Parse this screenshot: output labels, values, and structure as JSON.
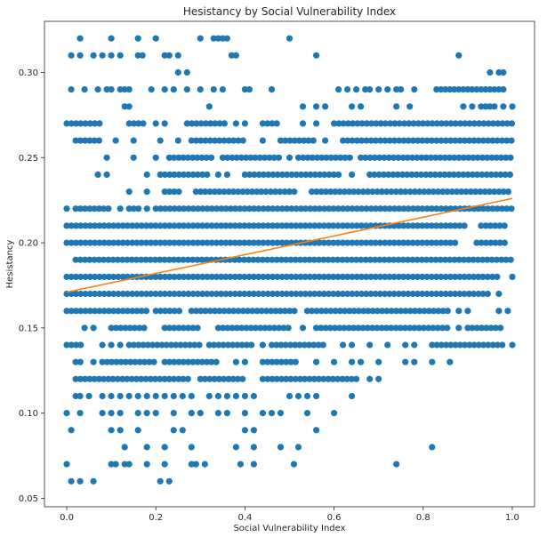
{
  "chart_data": {
    "type": "scatter",
    "title": "Hesistancy by Social Vulnerability Index",
    "xlabel": "Social Vulnerability Index",
    "ylabel": "Hesistancy",
    "xlim": [
      -0.05,
      1.05
    ],
    "ylim": [
      0.045,
      0.33
    ],
    "xticks": [
      0.0,
      0.2,
      0.4,
      0.6,
      0.8,
      1.0
    ],
    "xtick_labels": [
      "0.0",
      "0.2",
      "0.4",
      "0.6",
      "0.8",
      "1.0"
    ],
    "yticks": [
      0.05,
      0.1,
      0.15,
      0.2,
      0.25,
      0.3
    ],
    "ytick_labels": [
      "0.05",
      "0.10",
      "0.15",
      "0.20",
      "0.25",
      "0.30"
    ],
    "grid": false,
    "point_color": "#1f77b4",
    "line_color": "#ff7f0e",
    "trendline": {
      "x": [
        0.0,
        1.0
      ],
      "y": [
        0.171,
        0.226
      ]
    },
    "rows": [
      {
        "y": 0.32,
        "x": [
          0.03,
          0.1,
          0.16,
          0.2,
          0.3,
          0.33,
          0.34,
          0.35,
          0.36,
          0.5
        ]
      },
      {
        "y": 0.31,
        "x": [
          0.01,
          0.03,
          0.06,
          0.08,
          0.1,
          0.12,
          0.16,
          0.17,
          0.22,
          0.23,
          0.25,
          0.37,
          0.38,
          0.56,
          0.88
        ]
      },
      {
        "y": 0.3,
        "x": [
          0.25,
          0.27,
          0.95,
          0.97,
          0.98
        ]
      },
      {
        "y": 0.29,
        "x": [
          0.01,
          0.04,
          0.07,
          0.09,
          0.1,
          0.12,
          0.13,
          0.14,
          0.19,
          0.22,
          0.24,
          0.27,
          0.3,
          0.33,
          0.35,
          0.4,
          0.41,
          0.46,
          0.61,
          0.63,
          0.65,
          0.67,
          0.68,
          0.7,
          0.72,
          0.74,
          0.75,
          0.78,
          0.83,
          0.84,
          0.85,
          0.86,
          0.87,
          0.88,
          0.89,
          0.9,
          0.91,
          0.92,
          0.93,
          0.94,
          0.95,
          0.96,
          0.97,
          0.98
        ]
      },
      {
        "y": 0.28,
        "x": [
          0.13,
          0.14,
          0.32,
          0.53,
          0.56,
          0.58,
          0.64,
          0.66,
          0.74,
          0.77,
          0.89,
          0.91,
          0.93,
          0.94,
          0.95,
          0.96,
          0.98,
          1.0
        ]
      },
      {
        "y": 0.27,
        "dense": [
          [
            0.0,
            0.08
          ],
          [
            0.14,
            0.18
          ],
          [
            0.27,
            0.36
          ],
          [
            0.44,
            0.48
          ],
          [
            0.6,
            1.0
          ]
        ],
        "x": [
          0.2,
          0.22,
          0.38,
          0.4,
          0.53,
          0.56
        ]
      },
      {
        "y": 0.26,
        "dense": [
          [
            0.02,
            0.08
          ],
          [
            0.28,
            0.4
          ],
          [
            0.48,
            0.56
          ],
          [
            0.62,
            1.0
          ]
        ],
        "x": [
          0.11,
          0.15,
          0.21,
          0.25,
          0.44,
          0.58
        ]
      },
      {
        "y": 0.25,
        "dense": [
          [
            0.23,
            0.33
          ],
          [
            0.35,
            0.48
          ],
          [
            0.52,
            0.64
          ],
          [
            0.66,
            1.0
          ]
        ],
        "x": [
          0.09,
          0.15,
          0.2,
          0.5
        ]
      },
      {
        "y": 0.24,
        "dense": [
          [
            0.21,
            0.32
          ],
          [
            0.4,
            0.62
          ],
          [
            0.68,
            1.0
          ]
        ],
        "x": [
          0.07,
          0.09,
          0.18,
          0.34,
          0.36,
          0.64
        ]
      },
      {
        "y": 0.23,
        "dense": [
          [
            0.22,
            0.26
          ],
          [
            0.29,
            0.52
          ],
          [
            0.55,
            1.0
          ]
        ],
        "x": [
          0.14,
          0.18
        ]
      },
      {
        "y": 0.22,
        "dense": [
          [
            0.02,
            0.1
          ],
          [
            0.14,
            0.17
          ],
          [
            0.2,
            1.0
          ]
        ],
        "x": [
          0.0,
          0.12,
          0.18
        ]
      },
      {
        "y": 0.21,
        "dense": [
          [
            0.0,
            0.9
          ],
          [
            0.93,
            0.99
          ]
        ],
        "x": []
      },
      {
        "y": 0.2,
        "dense": [
          [
            0.0,
            0.88
          ],
          [
            0.92,
            0.99
          ]
        ],
        "x": []
      },
      {
        "y": 0.19,
        "dense": [
          [
            0.02,
            1.0
          ]
        ],
        "x": []
      },
      {
        "y": 0.18,
        "dense": [
          [
            0.0,
            0.97
          ]
        ],
        "x": [
          1.0
        ]
      },
      {
        "y": 0.17,
        "dense": [
          [
            0.0,
            0.95
          ]
        ],
        "x": [
          0.97
        ]
      },
      {
        "y": 0.16,
        "dense": [
          [
            0.0,
            0.18
          ],
          [
            0.2,
            0.26
          ],
          [
            0.28,
            0.52
          ],
          [
            0.54,
            0.86
          ]
        ],
        "x": [
          0.88,
          0.9,
          0.97,
          0.99
        ]
      },
      {
        "y": 0.15,
        "dense": [
          [
            0.1,
            0.18
          ],
          [
            0.22,
            0.3
          ],
          [
            0.34,
            0.5
          ],
          [
            0.56,
            0.86
          ],
          [
            0.9,
            0.98
          ]
        ],
        "x": [
          0.04,
          0.06,
          0.53,
          0.88
        ]
      },
      {
        "y": 0.14,
        "dense": [
          [
            0.0,
            0.04
          ],
          [
            0.14,
            0.3
          ],
          [
            0.32,
            0.42
          ],
          [
            0.46,
            0.58
          ],
          [
            0.82,
            0.98
          ]
        ],
        "x": [
          0.08,
          0.1,
          0.12,
          0.44,
          0.62,
          0.64,
          0.68,
          0.72,
          0.76,
          0.78,
          1.0
        ]
      },
      {
        "y": 0.13,
        "dense": [
          [
            0.02,
            0.04
          ],
          [
            0.08,
            0.2
          ],
          [
            0.22,
            0.34
          ],
          [
            0.44,
            0.52
          ]
        ],
        "x": [
          0.06,
          0.38,
          0.4,
          0.56,
          0.6,
          0.64,
          0.66,
          0.7,
          0.76,
          0.78,
          0.82,
          0.86
        ]
      },
      {
        "y": 0.12,
        "dense": [
          [
            0.02,
            0.28
          ],
          [
            0.3,
            0.4
          ],
          [
            0.44,
            0.66
          ]
        ],
        "x": [
          0.68,
          0.7
        ]
      },
      {
        "y": 0.11,
        "x": [
          0.02,
          0.03,
          0.05,
          0.08,
          0.1,
          0.12,
          0.14,
          0.16,
          0.18,
          0.2,
          0.22,
          0.24,
          0.26,
          0.28,
          0.32,
          0.34,
          0.36,
          0.38,
          0.4,
          0.42,
          0.5,
          0.52,
          0.54,
          0.56,
          0.64
        ]
      },
      {
        "y": 0.1,
        "x": [
          0.0,
          0.03,
          0.08,
          0.1,
          0.12,
          0.16,
          0.18,
          0.2,
          0.24,
          0.28,
          0.3,
          0.34,
          0.36,
          0.4,
          0.44,
          0.46,
          0.48,
          0.54,
          0.6
        ]
      },
      {
        "y": 0.09,
        "x": [
          0.01,
          0.1,
          0.12,
          0.16,
          0.24,
          0.26,
          0.4,
          0.42,
          0.56
        ]
      },
      {
        "y": 0.08,
        "x": [
          0.13,
          0.18,
          0.22,
          0.28,
          0.38,
          0.42,
          0.48,
          0.52,
          0.82
        ]
      },
      {
        "y": 0.07,
        "x": [
          0.0,
          0.1,
          0.11,
          0.13,
          0.14,
          0.18,
          0.22,
          0.28,
          0.29,
          0.31,
          0.39,
          0.42,
          0.51,
          0.74
        ]
      },
      {
        "y": 0.06,
        "x": [
          0.01,
          0.03,
          0.06,
          0.21,
          0.23
        ]
      }
    ]
  }
}
